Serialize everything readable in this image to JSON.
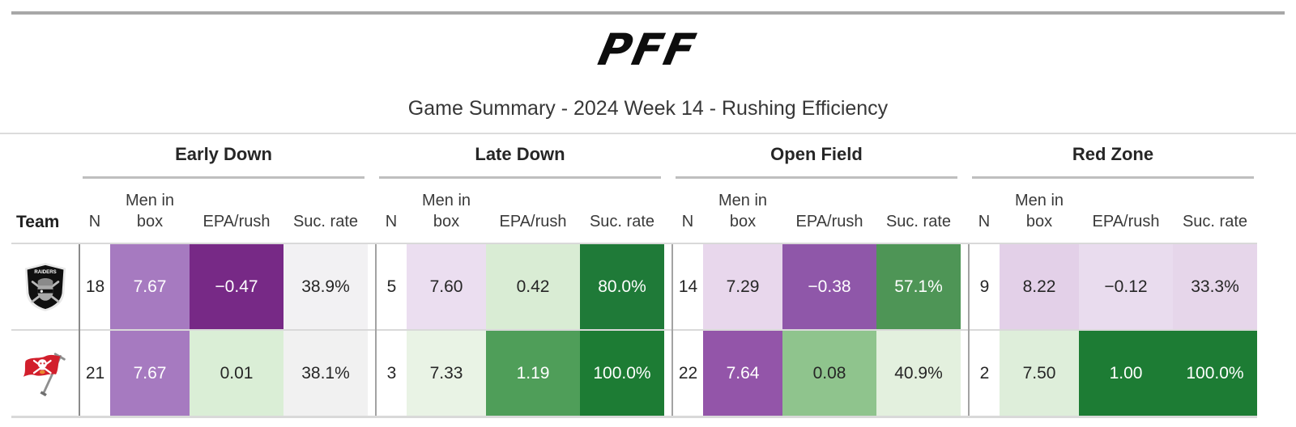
{
  "brand": "PFF",
  "title": "Game Summary - 2024 Week 14 - Rushing Efficiency",
  "chart_data": {
    "type": "table",
    "title": "Game Summary - 2024 Week 14 - Rushing Efficiency",
    "team_column_header": "Team",
    "groups": [
      "Early Down",
      "Late Down",
      "Open Field",
      "Red Zone"
    ],
    "sub_columns": [
      "N",
      "Men in box",
      "EPA/rush",
      "Suc. rate"
    ],
    "color_coding": {
      "good": "#1d7c34",
      "mid_good": "#4e9556",
      "neutral": "#f2f1f2",
      "mid_bad": "#9355a9",
      "bad": "#772986",
      "legend_note": "green = efficient rushing, purple = inefficient / heavy box"
    },
    "rows": [
      {
        "team": "Las Vegas Raiders",
        "early_down": {
          "n": 18,
          "men_in_box": 7.67,
          "epa_per_rush": -0.47,
          "suc_rate": "38.9%"
        },
        "late_down": {
          "n": 5,
          "men_in_box": 7.6,
          "epa_per_rush": 0.42,
          "suc_rate": "80.0%"
        },
        "open_field": {
          "n": 14,
          "men_in_box": 7.29,
          "epa_per_rush": -0.38,
          "suc_rate": "57.1%"
        },
        "red_zone": {
          "n": 9,
          "men_in_box": 8.22,
          "epa_per_rush": -0.12,
          "suc_rate": "33.3%"
        }
      },
      {
        "team": "Tampa Bay Buccaneers",
        "early_down": {
          "n": 21,
          "men_in_box": 7.67,
          "epa_per_rush": 0.01,
          "suc_rate": "38.1%"
        },
        "late_down": {
          "n": 3,
          "men_in_box": 7.33,
          "epa_per_rush": 1.19,
          "suc_rate": "100.0%"
        },
        "open_field": {
          "n": 22,
          "men_in_box": 7.64,
          "epa_per_rush": 0.08,
          "suc_rate": "40.9%"
        },
        "red_zone": {
          "n": 2,
          "men_in_box": 7.5,
          "epa_per_rush": 1.0,
          "suc_rate": "100.0%"
        }
      }
    ]
  },
  "display": {
    "rows": [
      {
        "team_id": "raiders",
        "team_name": "Las Vegas Raiders",
        "cells": [
          {
            "text": "18",
            "bg": "#ffffff",
            "fg": "#262626"
          },
          {
            "text": "7.67",
            "bg": "#a67ac0",
            "fg": "#ffffff"
          },
          {
            "text": "−0.47",
            "bg": "#772986",
            "fg": "#ffffff"
          },
          {
            "text": "38.9%",
            "bg": "#f2f1f3",
            "fg": "#262626"
          },
          {
            "text": "5",
            "bg": "#ffffff",
            "fg": "#262626"
          },
          {
            "text": "7.60",
            "bg": "#ebdef0",
            "fg": "#262626"
          },
          {
            "text": "0.42",
            "bg": "#d9ecd4",
            "fg": "#262626"
          },
          {
            "text": "80.0%",
            "bg": "#1f7a38",
            "fg": "#ffffff"
          },
          {
            "text": "14",
            "bg": "#ffffff",
            "fg": "#262626"
          },
          {
            "text": "7.29",
            "bg": "#e8d7ec",
            "fg": "#262626"
          },
          {
            "text": "−0.38",
            "bg": "#8f57a9",
            "fg": "#ffffff"
          },
          {
            "text": "57.1%",
            "bg": "#4e9556",
            "fg": "#ffffff"
          },
          {
            "text": "9",
            "bg": "#ffffff",
            "fg": "#262626"
          },
          {
            "text": "8.22",
            "bg": "#e3d0e8",
            "fg": "#262626"
          },
          {
            "text": "−0.12",
            "bg": "#e9dcee",
            "fg": "#262626"
          },
          {
            "text": "33.3%",
            "bg": "#e6d6ea",
            "fg": "#262626"
          }
        ]
      },
      {
        "team_id": "buccaneers",
        "team_name": "Tampa Bay Buccaneers",
        "cells": [
          {
            "text": "21",
            "bg": "#ffffff",
            "fg": "#262626"
          },
          {
            "text": "7.67",
            "bg": "#a67ac0",
            "fg": "#ffffff"
          },
          {
            "text": "0.01",
            "bg": "#daeed6",
            "fg": "#262626"
          },
          {
            "text": "38.1%",
            "bg": "#f1f1f1",
            "fg": "#262626"
          },
          {
            "text": "3",
            "bg": "#ffffff",
            "fg": "#262626"
          },
          {
            "text": "7.33",
            "bg": "#e9f3e5",
            "fg": "#262626"
          },
          {
            "text": "1.19",
            "bg": "#4f9e59",
            "fg": "#ffffff"
          },
          {
            "text": "100.0%",
            "bg": "#1d7c34",
            "fg": "#ffffff"
          },
          {
            "text": "22",
            "bg": "#ffffff",
            "fg": "#262626"
          },
          {
            "text": "7.64",
            "bg": "#9355a9",
            "fg": "#ffffff"
          },
          {
            "text": "0.08",
            "bg": "#8fc48d",
            "fg": "#262626"
          },
          {
            "text": "40.9%",
            "bg": "#e3f0de",
            "fg": "#262626"
          },
          {
            "text": "2",
            "bg": "#ffffff",
            "fg": "#262626"
          },
          {
            "text": "7.50",
            "bg": "#deeeda",
            "fg": "#262626"
          },
          {
            "text": "1.00",
            "bg": "#1d7c34",
            "fg": "#ffffff"
          },
          {
            "text": "100.0%",
            "bg": "#1d7c34",
            "fg": "#ffffff"
          }
        ]
      }
    ],
    "group_keys": [
      "early-down",
      "late-down",
      "open-field",
      "red-zone"
    ],
    "metric_keys": [
      "n",
      "men-in-box",
      "epa-rush",
      "suc-rate"
    ]
  }
}
